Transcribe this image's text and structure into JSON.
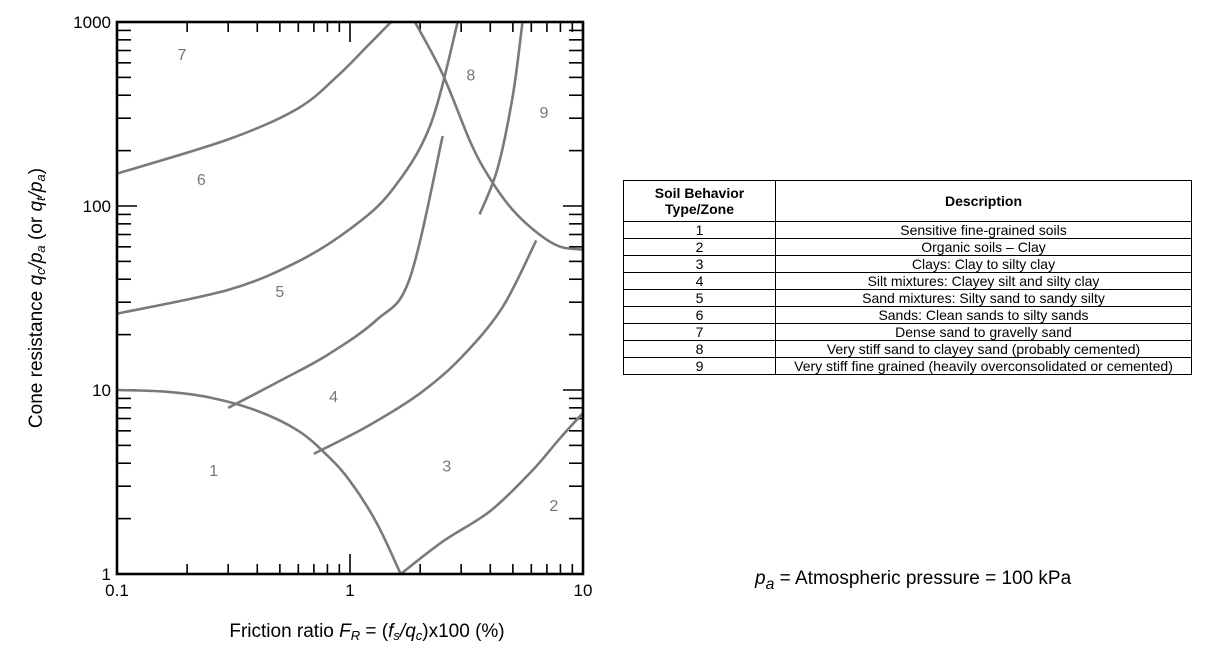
{
  "chart_data": {
    "type": "diagram-loglog",
    "x_axis": {
      "label_parts": [
        {
          "text": "Friction ratio ",
          "style": "normal"
        },
        {
          "text": "F",
          "style": "italic"
        },
        {
          "text": "R",
          "style": "italic-sub"
        },
        {
          "text": " = (",
          "style": "normal"
        },
        {
          "text": "f",
          "style": "italic"
        },
        {
          "text": "s",
          "style": "italic-sub"
        },
        {
          "text": "/",
          "style": "italic"
        },
        {
          "text": "q",
          "style": "italic"
        },
        {
          "text": "c",
          "style": "italic-sub"
        },
        {
          "text": ")x100 (%)",
          "style": "normal"
        }
      ],
      "scale": "log",
      "range": [
        0.1,
        10
      ],
      "tick_labels": [
        {
          "value": 0.1,
          "label": "0.1"
        },
        {
          "value": 1,
          "label": "1"
        },
        {
          "value": 10,
          "label": "10"
        }
      ]
    },
    "y_axis": {
      "label_parts": [
        {
          "text": "Cone resistance ",
          "style": "normal"
        },
        {
          "text": "q",
          "style": "italic"
        },
        {
          "text": "c",
          "style": "italic-sub"
        },
        {
          "text": "/",
          "style": "italic"
        },
        {
          "text": "p",
          "style": "italic"
        },
        {
          "text": "a",
          "style": "italic-sub"
        },
        {
          "text": " (or ",
          "style": "normal"
        },
        {
          "text": "q",
          "style": "italic"
        },
        {
          "text": "t",
          "style": "italic-sub"
        },
        {
          "text": "/",
          "style": "italic"
        },
        {
          "text": "p",
          "style": "italic"
        },
        {
          "text": "a",
          "style": "italic-sub"
        },
        {
          "text": ")",
          "style": "normal"
        }
      ],
      "scale": "log",
      "range": [
        1,
        1000
      ],
      "tick_labels": [
        {
          "value": 1,
          "label": "1"
        },
        {
          "value": 10,
          "label": "10"
        },
        {
          "value": 100,
          "label": "100"
        },
        {
          "value": 1000,
          "label": "1000"
        }
      ]
    },
    "zone_labels": [
      {
        "zone": "1",
        "fr": 0.26,
        "qt": 3.4
      },
      {
        "zone": "2",
        "fr": 7.5,
        "qt": 2.2
      },
      {
        "zone": "3",
        "fr": 2.6,
        "qt": 3.6
      },
      {
        "zone": "4",
        "fr": 0.85,
        "qt": 8.6
      },
      {
        "zone": "5",
        "fr": 0.5,
        "qt": 32
      },
      {
        "zone": "6",
        "fr": 0.23,
        "qt": 130
      },
      {
        "zone": "7",
        "fr": 0.19,
        "qt": 620
      },
      {
        "zone": "8",
        "fr": 3.3,
        "qt": 480
      },
      {
        "zone": "9",
        "fr": 6.8,
        "qt": 300
      }
    ],
    "boundaries": [
      {
        "name": "boundary-zone1",
        "points": [
          [
            0.1,
            10
          ],
          [
            0.16,
            9.8
          ],
          [
            0.25,
            9.1
          ],
          [
            0.4,
            7.7
          ],
          [
            0.6,
            6.0
          ],
          [
            0.8,
            4.4
          ],
          [
            1.0,
            3.2
          ],
          [
            1.3,
            1.9
          ],
          [
            1.65,
            1.0
          ]
        ]
      },
      {
        "name": "boundary-zone2-3",
        "points": [
          [
            1.65,
            1.0
          ],
          [
            2.5,
            1.5
          ],
          [
            4,
            2.2
          ],
          [
            6,
            3.6
          ],
          [
            8,
            5.5
          ],
          [
            10,
            7.5
          ]
        ]
      },
      {
        "name": "boundary-zone3-4",
        "points": [
          [
            0.7,
            4.5
          ],
          [
            1.2,
            6.4
          ],
          [
            2,
            9.6
          ],
          [
            3,
            15
          ],
          [
            4.5,
            28
          ],
          [
            6.3,
            65
          ]
        ]
      },
      {
        "name": "boundary-zone4-5",
        "points": [
          [
            0.3,
            8.0
          ],
          [
            0.5,
            11.2
          ],
          [
            0.8,
            15.5
          ],
          [
            1.3,
            24
          ],
          [
            1.8,
            40
          ],
          [
            2.5,
            240
          ]
        ]
      },
      {
        "name": "boundary-zone5-6",
        "points": [
          [
            0.1,
            26
          ],
          [
            0.3,
            35
          ],
          [
            0.6,
            50
          ],
          [
            1.0,
            75
          ],
          [
            1.5,
            120
          ],
          [
            2.2,
            270
          ],
          [
            2.9,
            1000
          ]
        ]
      },
      {
        "name": "boundary-zone6-7",
        "points": [
          [
            0.1,
            150
          ],
          [
            0.3,
            230
          ],
          [
            0.6,
            340
          ],
          [
            0.9,
            520
          ],
          [
            1.2,
            750
          ],
          [
            1.5,
            1000
          ]
        ]
      },
      {
        "name": "boundary-zone6-8",
        "points": [
          [
            1.9,
            1000
          ],
          [
            2.5,
            520
          ],
          [
            3.3,
            220
          ],
          [
            4.0,
            140
          ],
          [
            5.0,
            95
          ],
          [
            6.5,
            70
          ],
          [
            8.0,
            60
          ],
          [
            10.0,
            58
          ]
        ]
      },
      {
        "name": "boundary-zone9",
        "points": [
          [
            3.6,
            90
          ],
          [
            4.3,
            160
          ],
          [
            5.0,
            400
          ],
          [
            5.5,
            1000
          ]
        ]
      }
    ]
  },
  "table": {
    "headers": [
      "Soil Behavior Type/Zone",
      "Description"
    ],
    "rows": [
      {
        "zone": "1",
        "description": "Sensitive fine-grained soils"
      },
      {
        "zone": "2",
        "description": "Organic soils – Clay"
      },
      {
        "zone": "3",
        "description": "Clays: Clay to silty clay"
      },
      {
        "zone": "4",
        "description": "Silt mixtures: Clayey silt and silty clay"
      },
      {
        "zone": "5",
        "description": "Sand mixtures: Silty sand to sandy silty"
      },
      {
        "zone": "6",
        "description": "Sands: Clean sands to silty sands"
      },
      {
        "zone": "7",
        "description": "Dense sand to gravelly sand"
      },
      {
        "zone": "8",
        "description": "Very stiff sand to clayey sand (probably cemented)"
      },
      {
        "zone": "9",
        "description": "Very stiff fine grained (heavily overconsolidated or cemented)"
      }
    ]
  },
  "note": {
    "symbol": "p",
    "subscript": "a",
    "text": " = Atmospheric pressure = 100 kPa"
  }
}
